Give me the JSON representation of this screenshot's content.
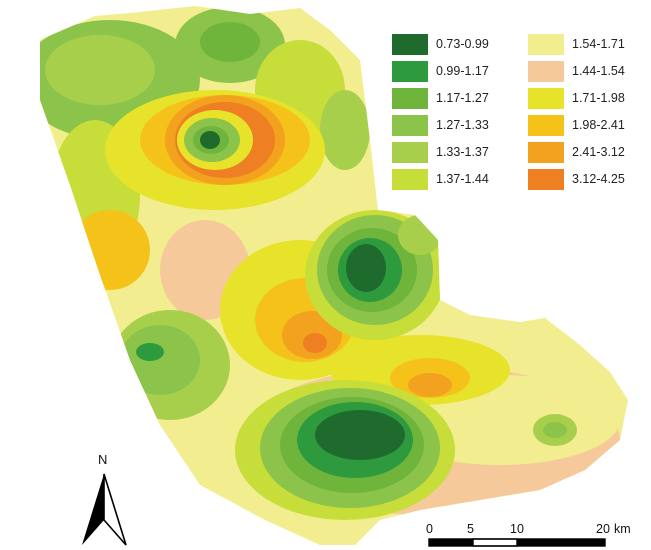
{
  "colors": {
    "c1": "#1f6b2e",
    "c2": "#2e9a3e",
    "c3": "#6fb53c",
    "c4": "#8cc34a",
    "c5": "#a8cf4c",
    "c6": "#c7dd3a",
    "c7": "#f2ee8f",
    "c8": "#f6c99a",
    "c9": "#e6e32a",
    "c10": "#f5c21a",
    "c11": "#f2a21e",
    "c12": "#ee7f22"
  },
  "legend": {
    "items": [
      {
        "label": "0.73-0.99",
        "color": "#1f6b2e"
      },
      {
        "label": "0.99-1.17",
        "color": "#2e9a3e"
      },
      {
        "label": "1.17-1.27",
        "color": "#6fb53c"
      },
      {
        "label": "1.27-1.33",
        "color": "#8cc34a"
      },
      {
        "label": "1.33-1.37",
        "color": "#a8cf4c"
      },
      {
        "label": "1.37-1.44",
        "color": "#c7dd3a"
      },
      {
        "label": "1.54-1.71",
        "color": "#f2ee8f"
      },
      {
        "label": "1.44-1.54",
        "color": "#f6c99a"
      },
      {
        "label": "1.71-1.98",
        "color": "#e6e32a"
      },
      {
        "label": "1.98-2.41",
        "color": "#f5c21a"
      },
      {
        "label": "2.41-3.12",
        "color": "#f2a21e"
      },
      {
        "label": "3.12-4.25",
        "color": "#ee7f22"
      }
    ]
  },
  "north": {
    "label": "N",
    "icon": "north-arrow-icon"
  },
  "scale": {
    "ticks": [
      "0",
      "5",
      "10",
      "20"
    ],
    "unit": "km"
  }
}
